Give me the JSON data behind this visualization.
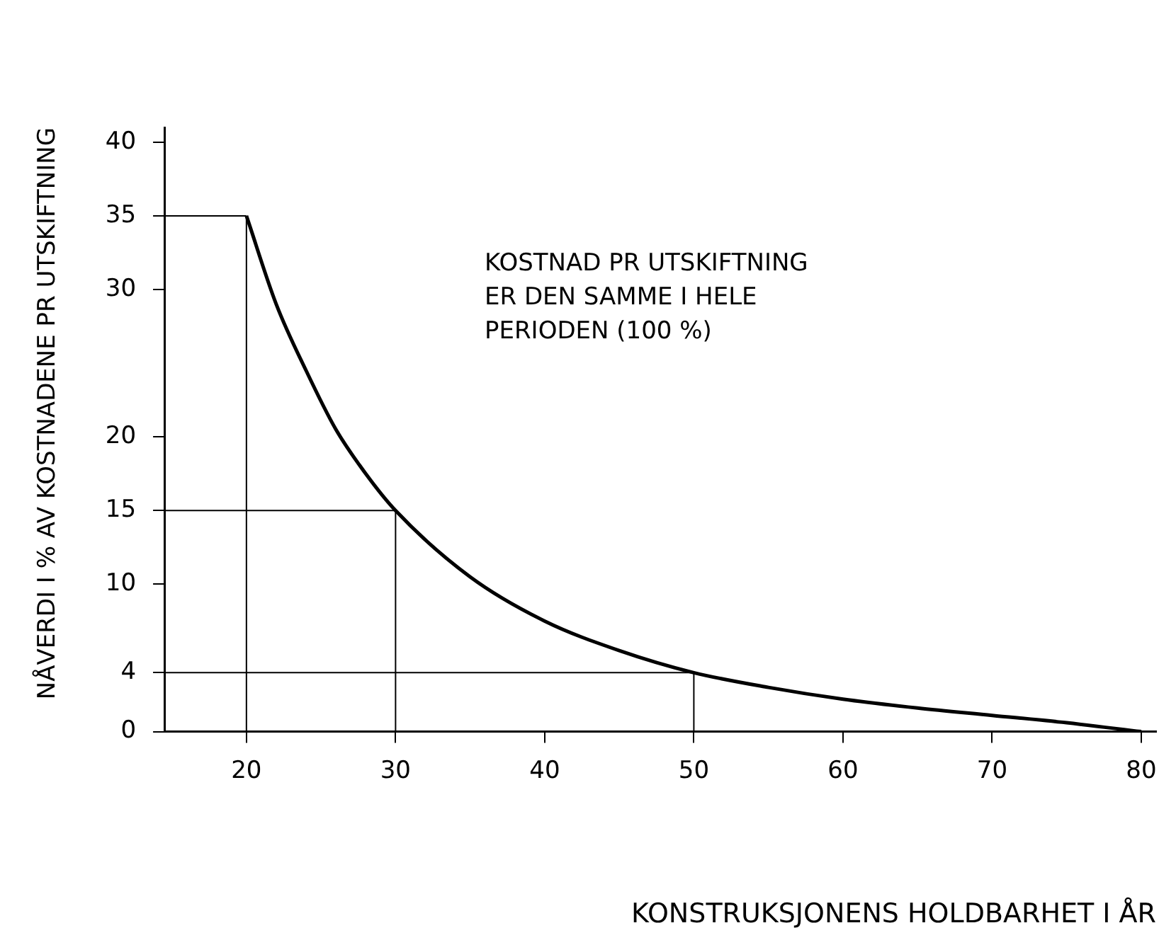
{
  "chart_data": {
    "type": "line",
    "xlabel": "KONSTRUKSJONENS HOLDBARHET I ÅR",
    "ylabel": "NÅVERDI I % AV KOSTNADENE PR UTSKIFTNING",
    "annotations": [
      "KOSTNAD PR UTSKIFTNING\nER DEN SAMME I HELE\nPERIODEN (100 %)"
    ],
    "series": [
      {
        "color": "#000000",
        "x": [
          20,
          22,
          24,
          26,
          28,
          30,
          35,
          40,
          45,
          50,
          55,
          60,
          65,
          70,
          75,
          80
        ],
        "values": [
          35,
          29,
          24.5,
          20.5,
          17.5,
          15,
          10.5,
          7.5,
          5.5,
          4,
          3,
          2.2,
          1.6,
          1.1,
          0.6,
          0
        ]
      }
    ],
    "xlim": [
      14.5,
      81
    ],
    "xticks": [
      20,
      30,
      40,
      50,
      60,
      70,
      80
    ],
    "ylim": [
      0,
      41
    ],
    "yticks": [
      0,
      4,
      10,
      15,
      20,
      30,
      35,
      40
    ],
    "ref_lines": [
      {
        "axis": "x",
        "value": 20
      },
      {
        "axis": "x",
        "value": 30
      },
      {
        "axis": "x",
        "value": 50
      },
      {
        "axis": "y",
        "value": 35
      },
      {
        "axis": "y",
        "value": 15
      },
      {
        "axis": "y",
        "value": 4
      }
    ],
    "grid": false,
    "legend": false,
    "marker": "none",
    "line_style": "solid"
  }
}
